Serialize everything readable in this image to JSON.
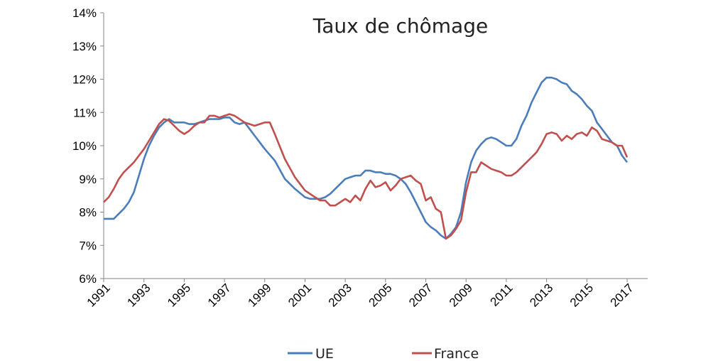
{
  "chart_data": {
    "type": "line",
    "title": "Taux de chômage",
    "xlabel": "",
    "ylabel": "",
    "xlim": [
      1991,
      2017
    ],
    "ylim": [
      6,
      14
    ],
    "y_ticks": [
      6,
      7,
      8,
      9,
      10,
      11,
      12,
      13,
      14
    ],
    "y_tick_labels": [
      "6%",
      "7%",
      "8%",
      "9%",
      "10%",
      "11%",
      "12%",
      "13%",
      "14%"
    ],
    "x_ticks": [
      1991,
      1993,
      1995,
      1997,
      1999,
      2001,
      2003,
      2005,
      2007,
      2009,
      2011,
      2013,
      2015,
      2017
    ],
    "x_tick_labels": [
      "1991",
      "1993",
      "1995",
      "1997",
      "1999",
      "2001",
      "2003",
      "2005",
      "2007",
      "2009",
      "2011",
      "2013",
      "2015",
      "2017"
    ],
    "grid": false,
    "legend_position": "bottom",
    "series": [
      {
        "name": "UE",
        "color": "#4a7ebb",
        "x": [
          1991,
          1991.25,
          1991.5,
          1991.75,
          1992,
          1992.25,
          1992.5,
          1992.75,
          1993,
          1993.25,
          1993.5,
          1993.75,
          1994,
          1994.25,
          1994.5,
          1994.75,
          1995,
          1995.25,
          1995.5,
          1995.75,
          1996,
          1996.25,
          1996.5,
          1996.75,
          1997,
          1997.25,
          1997.5,
          1997.75,
          1998,
          1998.25,
          1998.5,
          1998.75,
          1999,
          1999.5,
          2000,
          2000.5,
          2001,
          2001.25,
          2001.5,
          2001.75,
          2002,
          2002.25,
          2002.5,
          2002.75,
          2003,
          2003.25,
          2003.5,
          2003.75,
          2004,
          2004.25,
          2004.5,
          2004.75,
          2005,
          2005.25,
          2005.5,
          2005.75,
          2006,
          2006.25,
          2006.5,
          2006.75,
          2007,
          2007.25,
          2007.5,
          2007.75,
          2008,
          2008.25,
          2008.5,
          2008.75,
          2009,
          2009.25,
          2009.5,
          2009.75,
          2010,
          2010.25,
          2010.5,
          2010.75,
          2011,
          2011.25,
          2011.5,
          2011.75,
          2012,
          2012.25,
          2012.5,
          2012.75,
          2013,
          2013.25,
          2013.5,
          2013.75,
          2014,
          2014.25,
          2014.5,
          2014.75,
          2015,
          2015.25,
          2015.5,
          2015.75,
          2016,
          2016.25,
          2016.5,
          2016.75,
          2017
        ],
        "values": [
          7.8,
          7.8,
          7.8,
          7.95,
          8.1,
          8.3,
          8.6,
          9.1,
          9.6,
          10.0,
          10.3,
          10.55,
          10.7,
          10.8,
          10.7,
          10.7,
          10.7,
          10.65,
          10.65,
          10.7,
          10.75,
          10.8,
          10.8,
          10.8,
          10.85,
          10.85,
          10.7,
          10.65,
          10.7,
          10.5,
          10.3,
          10.1,
          9.9,
          9.55,
          9.0,
          8.7,
          8.45,
          8.4,
          8.4,
          8.4,
          8.45,
          8.55,
          8.7,
          8.85,
          9.0,
          9.05,
          9.1,
          9.1,
          9.25,
          9.25,
          9.2,
          9.2,
          9.15,
          9.15,
          9.1,
          9.0,
          8.85,
          8.6,
          8.3,
          8.0,
          7.7,
          7.55,
          7.45,
          7.3,
          7.2,
          7.35,
          7.55,
          8.0,
          8.9,
          9.5,
          9.85,
          10.05,
          10.2,
          10.25,
          10.2,
          10.1,
          10.0,
          10.0,
          10.2,
          10.6,
          10.9,
          11.3,
          11.6,
          11.9,
          12.05,
          12.05,
          12.0,
          11.9,
          11.85,
          11.65,
          11.55,
          11.4,
          11.2,
          11.05,
          10.7,
          10.5,
          10.3,
          10.1,
          10.0,
          9.7,
          9.5
        ]
      },
      {
        "name": "France",
        "color": "#c0504d",
        "x": [
          1991,
          1991.25,
          1991.5,
          1991.75,
          1992,
          1992.25,
          1992.5,
          1992.75,
          1993,
          1993.25,
          1993.5,
          1993.75,
          1994,
          1994.25,
          1994.5,
          1994.75,
          1995,
          1995.25,
          1995.5,
          1995.75,
          1996,
          1996.25,
          1996.5,
          1996.75,
          1997,
          1997.25,
          1997.5,
          1997.75,
          1998,
          1998.25,
          1998.5,
          1998.75,
          1999,
          1999.25,
          1999.5,
          2000,
          2000.5,
          2001,
          2001.25,
          2001.5,
          2001.75,
          2002,
          2002.25,
          2002.5,
          2002.75,
          2003,
          2003.25,
          2003.5,
          2003.75,
          2004,
          2004.25,
          2004.5,
          2004.75,
          2005,
          2005.25,
          2005.5,
          2005.75,
          2006,
          2006.25,
          2006.5,
          2006.75,
          2007,
          2007.25,
          2007.5,
          2007.75,
          2008,
          2008.25,
          2008.5,
          2008.75,
          2009,
          2009.25,
          2009.5,
          2009.75,
          2010,
          2010.25,
          2010.5,
          2010.75,
          2011,
          2011.25,
          2011.5,
          2011.75,
          2012,
          2012.25,
          2012.5,
          2012.75,
          2013,
          2013.25,
          2013.5,
          2013.75,
          2014,
          2014.25,
          2014.5,
          2014.75,
          2015,
          2015.25,
          2015.5,
          2015.75,
          2016,
          2016.25,
          2016.5,
          2016.75,
          2017
        ],
        "values": [
          8.3,
          8.45,
          8.7,
          9.0,
          9.2,
          9.35,
          9.5,
          9.7,
          9.9,
          10.15,
          10.4,
          10.65,
          10.8,
          10.75,
          10.6,
          10.45,
          10.35,
          10.45,
          10.6,
          10.7,
          10.7,
          10.9,
          10.9,
          10.85,
          10.9,
          10.95,
          10.9,
          10.8,
          10.7,
          10.65,
          10.6,
          10.65,
          10.7,
          10.7,
          10.35,
          9.6,
          9.05,
          8.65,
          8.55,
          8.45,
          8.35,
          8.35,
          8.2,
          8.2,
          8.3,
          8.4,
          8.3,
          8.5,
          8.35,
          8.7,
          8.95,
          8.75,
          8.8,
          8.9,
          8.65,
          8.8,
          9.0,
          9.05,
          9.1,
          8.95,
          8.85,
          8.35,
          8.45,
          8.1,
          8.0,
          7.2,
          7.3,
          7.5,
          7.75,
          8.6,
          9.2,
          9.2,
          9.5,
          9.4,
          9.3,
          9.25,
          9.2,
          9.1,
          9.1,
          9.2,
          9.35,
          9.5,
          9.65,
          9.8,
          10.05,
          10.35,
          10.4,
          10.35,
          10.15,
          10.3,
          10.2,
          10.35,
          10.4,
          10.3,
          10.55,
          10.45,
          10.2,
          10.15,
          10.1,
          10.0,
          10.0,
          9.65
        ]
      }
    ]
  }
}
